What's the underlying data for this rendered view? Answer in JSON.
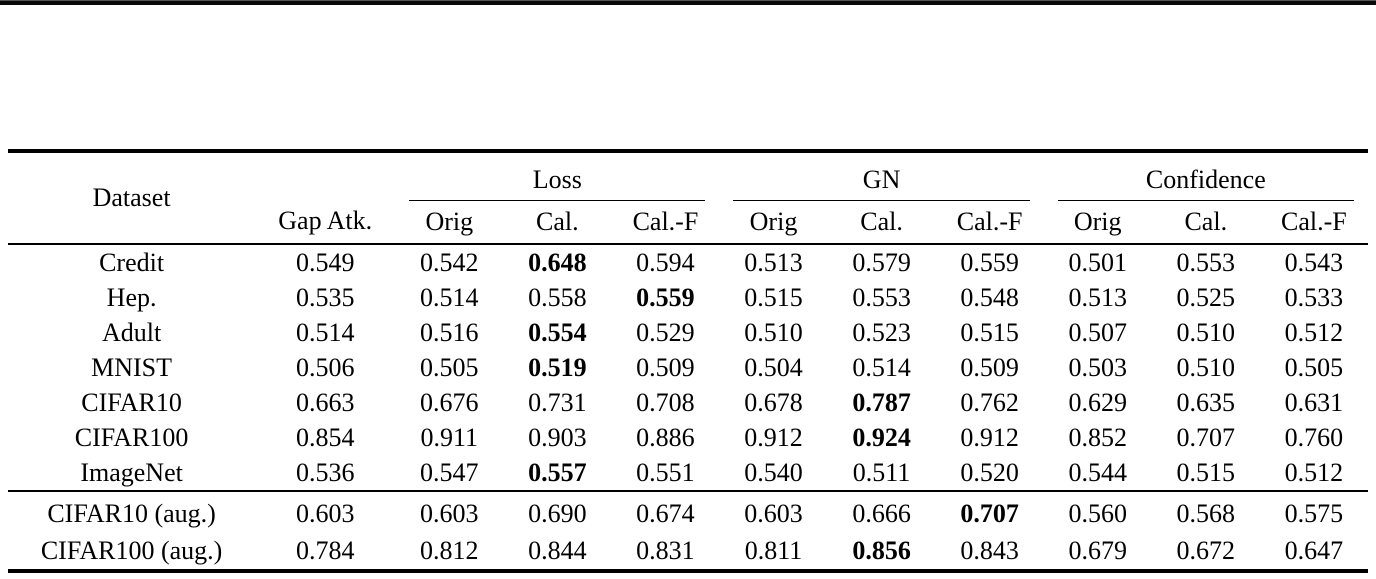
{
  "colors": {
    "text": "#000000",
    "rule": "#000000",
    "background": "#ffffff"
  },
  "table": {
    "header": {
      "dataset": "Dataset",
      "gap_atk": "Gap Atk.",
      "groups": [
        {
          "label": "Loss"
        },
        {
          "label": "GN"
        },
        {
          "label": "Confidence"
        }
      ],
      "sub_labels": [
        "Orig",
        "Cal.",
        "Cal.-F"
      ]
    },
    "sections": [
      {
        "rows": [
          {
            "dataset": "Credit",
            "gap_atk": "0.549",
            "values": [
              "0.542",
              "0.648",
              "0.594",
              "0.513",
              "0.579",
              "0.559",
              "0.501",
              "0.553",
              "0.543"
            ],
            "bold_index": 1
          },
          {
            "dataset": "Hep.",
            "gap_atk": "0.535",
            "values": [
              "0.514",
              "0.558",
              "0.559",
              "0.515",
              "0.553",
              "0.548",
              "0.513",
              "0.525",
              "0.533"
            ],
            "bold_index": 2
          },
          {
            "dataset": "Adult",
            "gap_atk": "0.514",
            "values": [
              "0.516",
              "0.554",
              "0.529",
              "0.510",
              "0.523",
              "0.515",
              "0.507",
              "0.510",
              "0.512"
            ],
            "bold_index": 1
          },
          {
            "dataset": "MNIST",
            "gap_atk": "0.506",
            "values": [
              "0.505",
              "0.519",
              "0.509",
              "0.504",
              "0.514",
              "0.509",
              "0.503",
              "0.510",
              "0.505"
            ],
            "bold_index": 1
          },
          {
            "dataset": "CIFAR10",
            "gap_atk": "0.663",
            "values": [
              "0.676",
              "0.731",
              "0.708",
              "0.678",
              "0.787",
              "0.762",
              "0.629",
              "0.635",
              "0.631"
            ],
            "bold_index": 4
          },
          {
            "dataset": "CIFAR100",
            "gap_atk": "0.854",
            "values": [
              "0.911",
              "0.903",
              "0.886",
              "0.912",
              "0.924",
              "0.912",
              "0.852",
              "0.707",
              "0.760"
            ],
            "bold_index": 4
          },
          {
            "dataset": "ImageNet",
            "gap_atk": "0.536",
            "values": [
              "0.547",
              "0.557",
              "0.551",
              "0.540",
              "0.511",
              "0.520",
              "0.544",
              "0.515",
              "0.512"
            ],
            "bold_index": 1
          }
        ]
      },
      {
        "rows": [
          {
            "dataset": "CIFAR10 (aug.)",
            "gap_atk": "0.603",
            "values": [
              "0.603",
              "0.690",
              "0.674",
              "0.603",
              "0.666",
              "0.707",
              "0.560",
              "0.568",
              "0.575"
            ],
            "bold_index": 5
          },
          {
            "dataset": "CIFAR100 (aug.)",
            "gap_atk": "0.784",
            "values": [
              "0.812",
              "0.844",
              "0.831",
              "0.811",
              "0.856",
              "0.843",
              "0.679",
              "0.672",
              "0.647"
            ],
            "bold_index": 4
          }
        ]
      }
    ]
  }
}
